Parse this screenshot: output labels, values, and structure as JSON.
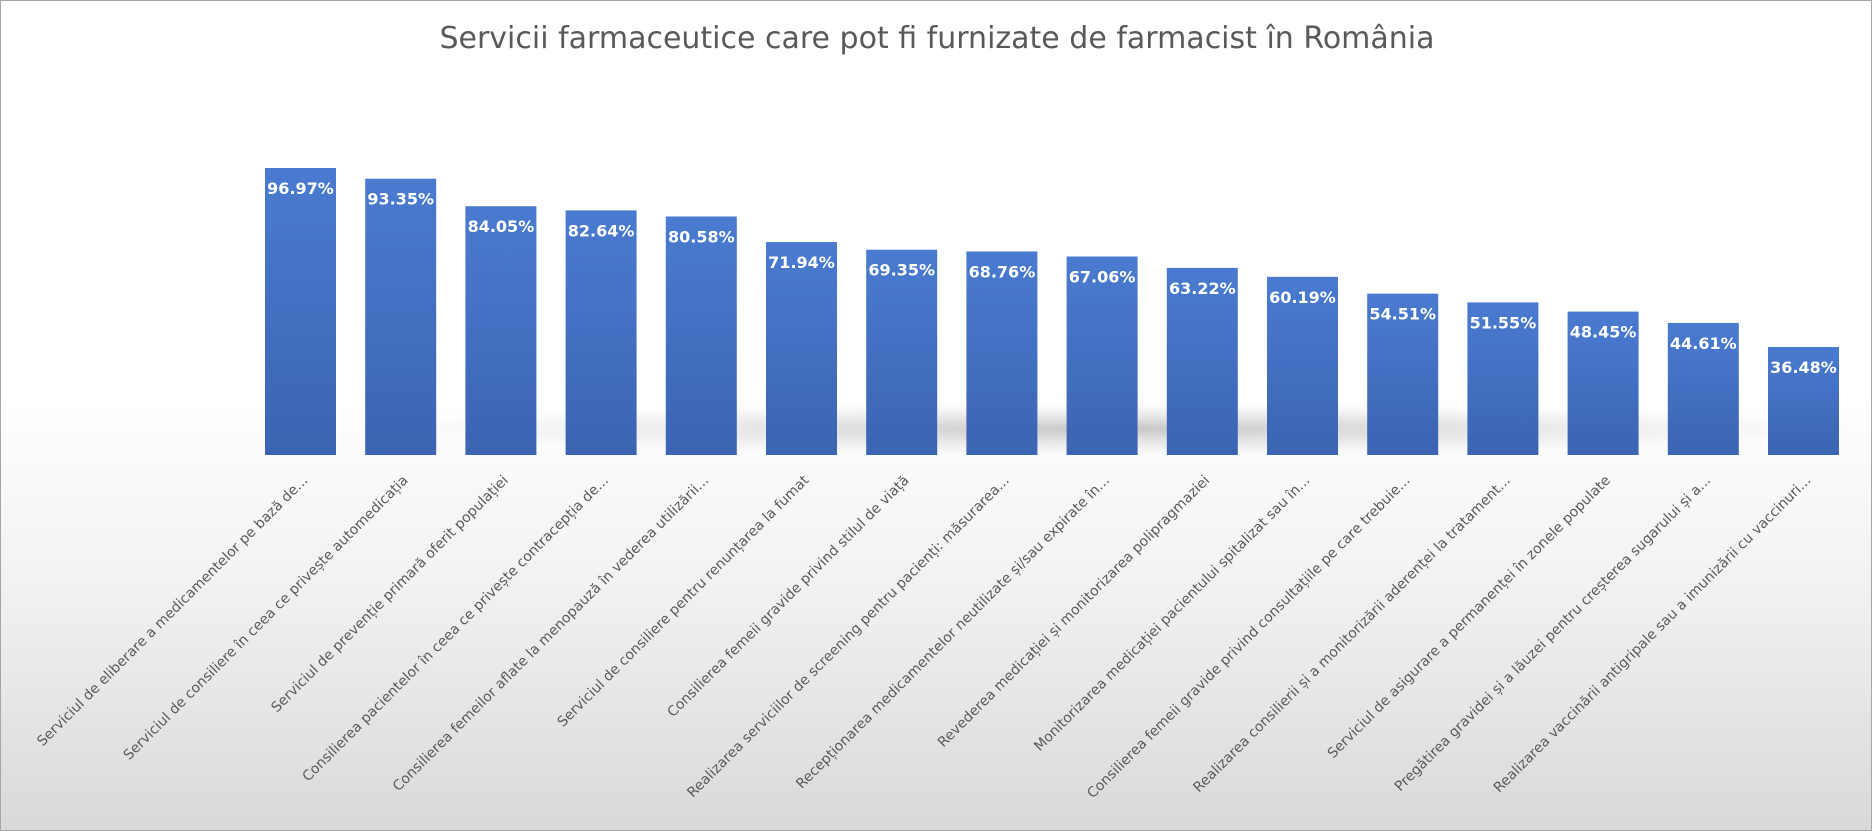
{
  "chart_data": {
    "type": "bar",
    "title": "Servicii farmaceutice care pot fi furnizate de farmacist în România",
    "xlabel": "",
    "ylabel": "",
    "ylim": [
      0,
      100
    ],
    "grid": false,
    "legend": "none",
    "bar_color": "#4472c4",
    "categories": [
      "Serviciul de eliberare a medicamentelor  pe bază de...",
      "Serviciul de consiliere în ceea ce privește automedicația",
      "Serviciul de prevenție primară oferit populației",
      "Consilierea pacientelor în ceea ce privește contracepția de...",
      "Consilierea femeilor aflate la menopauză în vederea utilizării...",
      "Serviciul de consiliere pentru renunțarea la fumat",
      "Consilierea femeii gravide privind stilul de viață",
      "Realizarea serviciilor de screening pentru pacienți: măsurarea...",
      "Recepționarea medicamentelor  neutilizate și/sau expirate în...",
      "Revederea medicației și monitorizarea polipragmaziei",
      "Monitorizarea medicației pacientului spitalizat sau în...",
      "Consilierea femeii  gravide privind consultațiile pe care trebuie...",
      "Realizarea consilierii și a monitorizării aderenței la tratament...",
      "Serviciul de asigurare a permanenței în zonele populate",
      "Pregătirea gravidei și a lăuzei pentru creșterea sugarului și a...",
      "Realizarea vaccinării antigripale sau a imunizării cu vaccinuri..."
    ],
    "values": [
      96.97,
      93.35,
      84.05,
      82.64,
      80.58,
      71.94,
      69.35,
      68.76,
      67.06,
      63.22,
      60.19,
      54.51,
      51.55,
      48.45,
      44.61,
      36.48
    ],
    "data_labels": [
      "96.97%",
      "93.35%",
      "84.05%",
      "82.64%",
      "80.58%",
      "71.94%",
      "69.35%",
      "68.76%",
      "67.06%",
      "63.22%",
      "60.19%",
      "54.51%",
      "51.55%",
      "48.45%",
      "44.61%",
      "36.48%"
    ]
  }
}
